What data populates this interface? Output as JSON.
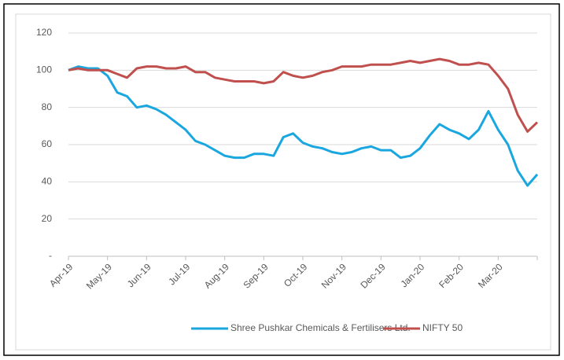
{
  "chart_data": {
    "type": "line",
    "categories": [
      "Apr-19",
      null,
      null,
      null,
      "May-19",
      null,
      null,
      null,
      "Jun-19",
      null,
      null,
      null,
      "Jul-19",
      null,
      null,
      null,
      "Aug-19",
      null,
      null,
      null,
      "Sep-19",
      null,
      null,
      null,
      "Oct-19",
      null,
      null,
      null,
      "Nov-19",
      null,
      null,
      null,
      "Dec-19",
      null,
      null,
      null,
      "Jan-20",
      null,
      null,
      null,
      "Feb-20",
      null,
      null,
      null,
      "Mar-20",
      null,
      null,
      null,
      null
    ],
    "series": [
      {
        "name": "Shree Pushkar Chemicals & Fertilisers Ltd.",
        "color": "#1aa7e0",
        "values": [
          100,
          102,
          101,
          101,
          97,
          88,
          86,
          80,
          81,
          79,
          76,
          72,
          68,
          62,
          60,
          57,
          54,
          53,
          53,
          55,
          55,
          54,
          64,
          66,
          61,
          59,
          58,
          56,
          55,
          56,
          58,
          59,
          57,
          57,
          53,
          54,
          58,
          65,
          71,
          68,
          66,
          63,
          68,
          78,
          68,
          60,
          46,
          38,
          44
        ]
      },
      {
        "name": "NIFTY 50",
        "color": "#c0504d",
        "values": [
          100,
          101,
          100,
          100,
          100,
          98,
          96,
          101,
          102,
          102,
          101,
          101,
          102,
          99,
          99,
          96,
          95,
          94,
          94,
          94,
          93,
          94,
          99,
          97,
          96,
          97,
          99,
          100,
          102,
          102,
          102,
          103,
          103,
          103,
          104,
          105,
          104,
          105,
          106,
          105,
          103,
          103,
          104,
          103,
          97,
          90,
          76,
          67,
          72
        ]
      }
    ],
    "ylim": [
      0,
      120
    ],
    "yticks": [
      {
        "value": 0,
        "label": "-"
      },
      20,
      40,
      60,
      80,
      100,
      120
    ],
    "grid": true
  }
}
